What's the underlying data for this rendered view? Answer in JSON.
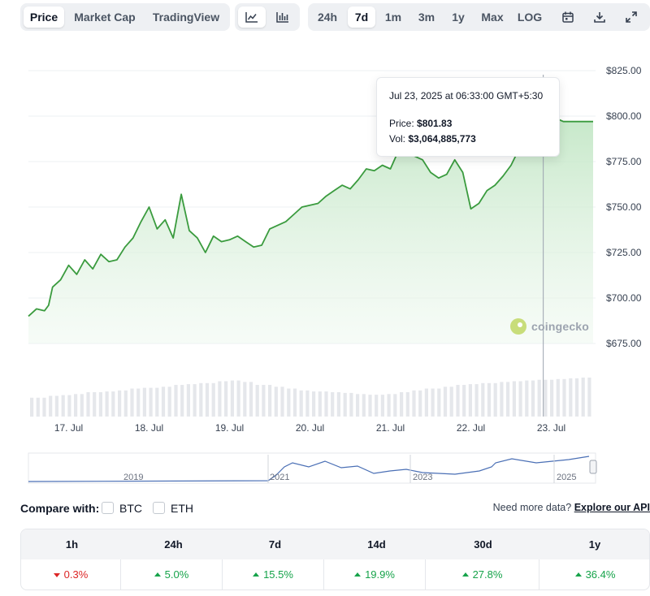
{
  "toolbar": {
    "tabs": [
      "Price",
      "Market Cap",
      "TradingView"
    ],
    "chart_types": [
      {
        "icon": "line-chart-icon"
      },
      {
        "icon": "candlestick-chart-icon"
      }
    ],
    "ranges": [
      "24h",
      "7d",
      "1m",
      "3m",
      "1y",
      "Max",
      "LOG"
    ],
    "active_tab": "Price",
    "active_range": "7d",
    "tools": [
      {
        "icon": "calendar-icon"
      },
      {
        "icon": "download-icon"
      },
      {
        "icon": "expand-icon"
      }
    ]
  },
  "tooltip": {
    "date": "Jul 23, 2025 at 06:33:00 GMT+5:30",
    "price_label": "Price:",
    "price_value": "$801.83",
    "vol_label": "Vol:",
    "vol_value": "$3,064,885,773"
  },
  "watermark": "coingecko",
  "colors": {
    "line": "#3a9b3e",
    "fill": "#e3f4e4",
    "volume": "#e5e7eb",
    "navigator": "#4a6fb5",
    "up": "#16a34a",
    "down": "#dc2626"
  },
  "chart_data": {
    "type": "area",
    "x_tick_labels": [
      "17. Jul",
      "18. Jul",
      "19. Jul",
      "20. Jul",
      "21. Jul",
      "22. Jul",
      "23. Jul"
    ],
    "y_tick_labels": [
      "$825.00",
      "$800.00",
      "$775.00",
      "$750.00",
      "$725.00",
      "$700.00",
      "$675.00"
    ],
    "ylim": [
      675,
      825
    ],
    "x_day_range": [
      16.5,
      23.55
    ],
    "series": [
      {
        "x": [
          16.5,
          16.6,
          16.7,
          16.75,
          16.8,
          16.9,
          17.0,
          17.1,
          17.2,
          17.3,
          17.4,
          17.5,
          17.6,
          17.7,
          17.8,
          17.9,
          18.0,
          18.1,
          18.2,
          18.3,
          18.4,
          18.5,
          18.6,
          18.7,
          18.8,
          18.9,
          19.0,
          19.1,
          19.2,
          19.3,
          19.4,
          19.5,
          19.6,
          19.7,
          19.8,
          19.9,
          20.0,
          20.1,
          20.2,
          20.3,
          20.4,
          20.5,
          20.6,
          20.7,
          20.8,
          20.9,
          21.0,
          21.1,
          21.2,
          21.3,
          21.4,
          21.5,
          21.6,
          21.7,
          21.8,
          21.9,
          22.0,
          22.1,
          22.2,
          22.3,
          22.4,
          22.5,
          22.6,
          22.7,
          22.8,
          22.9,
          23.0,
          23.1,
          23.15,
          23.2,
          23.27,
          23.35,
          23.45,
          23.52
        ],
        "y": [
          690,
          694,
          693,
          696,
          706,
          710,
          718,
          713,
          721,
          716,
          724,
          720,
          721,
          728,
          733,
          742,
          750,
          738,
          743,
          733,
          757,
          737,
          733,
          725,
          734,
          731,
          732,
          734,
          731,
          728,
          729,
          738,
          740,
          742,
          746,
          750,
          751,
          752,
          756,
          759,
          762,
          760,
          765,
          771,
          770,
          773,
          771,
          781,
          787,
          778,
          776,
          769,
          766,
          768,
          776,
          769,
          749,
          752,
          759,
          762,
          767,
          773,
          782,
          800,
          801.8,
          794,
          799,
          798,
          797,
          797,
          797,
          797,
          797,
          797
        ],
        "name": ""
      }
    ],
    "volume": {
      "shape": "relative",
      "values": [
        0.25,
        0.3,
        0.32,
        0.35,
        0.4,
        0.42,
        0.45,
        0.5,
        0.52,
        0.55,
        0.6,
        0.62,
        0.65,
        0.7,
        0.72,
        0.68,
        0.6,
        0.55,
        0.5,
        0.45,
        0.42,
        0.4,
        0.38,
        0.35,
        0.33,
        0.35,
        0.4,
        0.45,
        0.5,
        0.55,
        0.6,
        0.62,
        0.65,
        0.68,
        0.7,
        0.72,
        0.74,
        0.76,
        0.78,
        0.8
      ]
    },
    "navigator": {
      "labels": [
        "2019",
        "2021",
        "2023",
        "2025"
      ]
    },
    "grid": true
  },
  "compare": {
    "label": "Compare with:",
    "options": [
      "BTC",
      "ETH"
    ]
  },
  "need_data": {
    "text": "Need more data?",
    "link": "Explore our API"
  },
  "performance": {
    "headers": [
      "1h",
      "24h",
      "7d",
      "14d",
      "30d",
      "1y"
    ],
    "values": [
      {
        "value": "0.3%",
        "dir": "down"
      },
      {
        "value": "5.0%",
        "dir": "up"
      },
      {
        "value": "15.5%",
        "dir": "up"
      },
      {
        "value": "19.9%",
        "dir": "up"
      },
      {
        "value": "27.8%",
        "dir": "up"
      },
      {
        "value": "36.4%",
        "dir": "up"
      }
    ]
  }
}
